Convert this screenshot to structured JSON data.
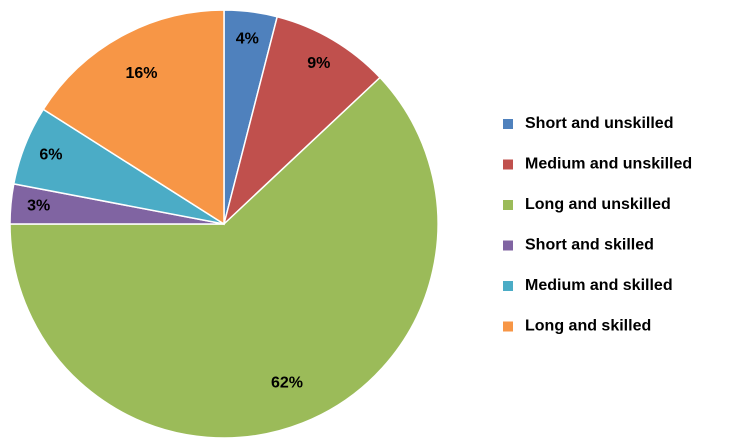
{
  "chart_data": {
    "type": "pie",
    "categories": [
      "Short and unskilled",
      "Medium and unskilled",
      "Long and unskilled",
      "Short and skilled",
      "Medium and skilled",
      "Long and skilled"
    ],
    "values": [
      4,
      9,
      62,
      3,
      6,
      16
    ],
    "value_labels": [
      "4%",
      "9%",
      "62%",
      "3%",
      "6%",
      "16%"
    ],
    "colors": [
      "#4f81bd",
      "#c0504d",
      "#9bbb59",
      "#8064a2",
      "#4bacc6",
      "#f79646"
    ],
    "legend": "right"
  }
}
